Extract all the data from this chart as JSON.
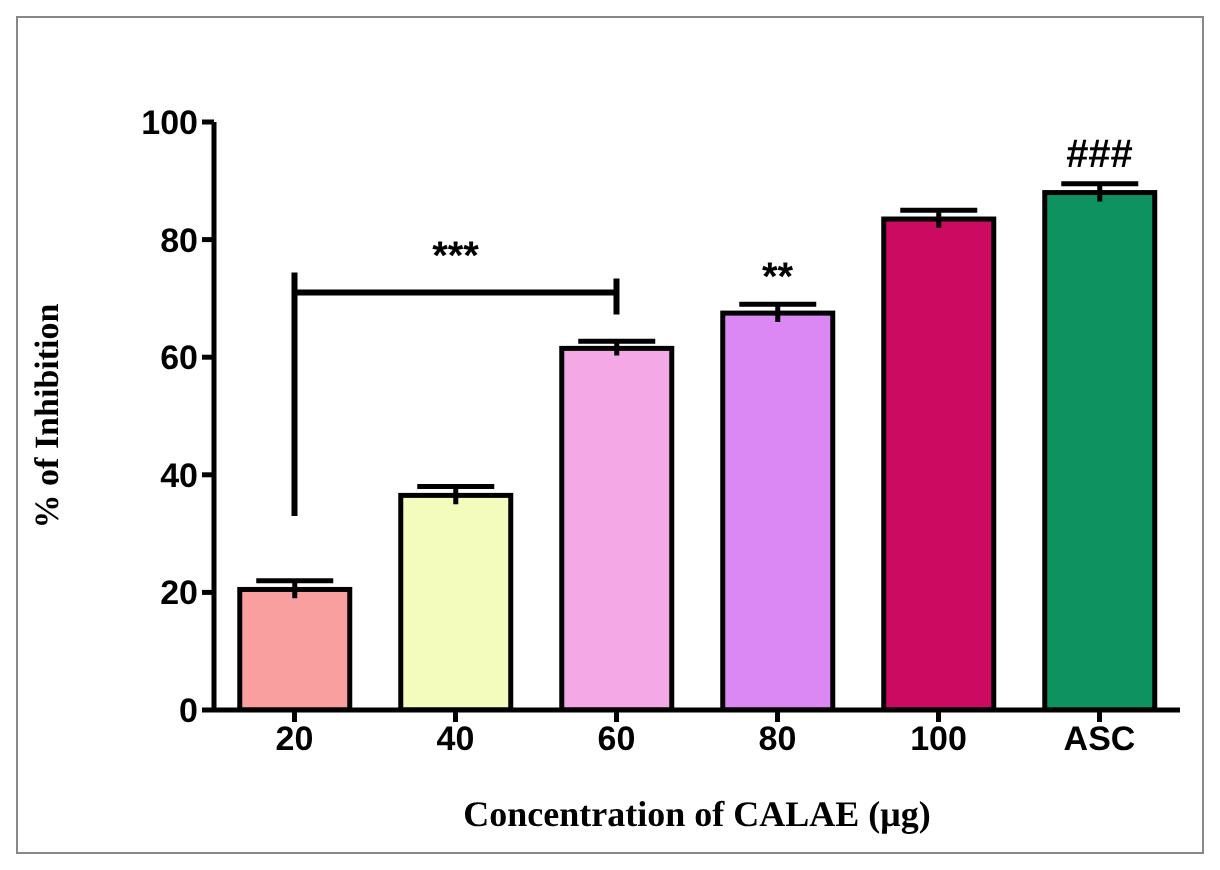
{
  "chart_data": {
    "type": "bar",
    "xlabel": "Concentration of CALAE (μg)",
    "ylabel": "% of Inhibition",
    "categories": [
      "20",
      "40",
      "60",
      "80",
      "100",
      "ASC"
    ],
    "values": [
      20.5,
      36.5,
      61.5,
      67.5,
      83.5,
      88
    ],
    "errors": [
      1.5,
      1.5,
      1.2,
      1.5,
      1.5,
      1.5
    ],
    "colors": [
      "#f99f9f",
      "#f3fbbd",
      "#f5a8e6",
      "#dc88f4",
      "#cc0a62",
      "#0e9360"
    ],
    "ylim": [
      0,
      100
    ],
    "yticks": [
      0,
      20,
      40,
      60,
      80,
      100
    ],
    "grid": false,
    "legend": false,
    "annotations": [
      "***",
      {
        "text": "**",
        "x": "80",
        "y": 70
      },
      {
        "text": "###",
        "x": "ASC",
        "y": 91
      }
    ]
  }
}
